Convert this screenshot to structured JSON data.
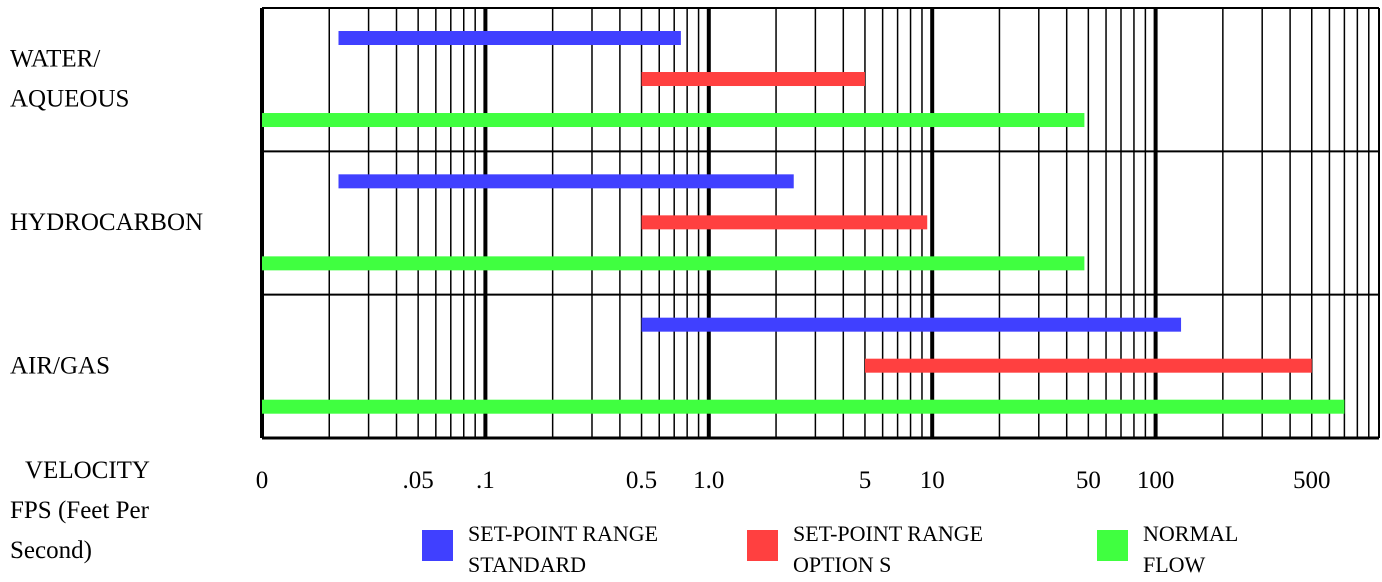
{
  "chart_data": {
    "type": "bar",
    "orientation": "horizontal-range",
    "x_scale": "log",
    "xlim": [
      0.01,
      1000
    ],
    "categories": [
      {
        "label_lines": [
          "WATER/",
          "AQUEOUS"
        ]
      },
      {
        "label_lines": [
          "HYDROCARBON"
        ]
      },
      {
        "label_lines": [
          "AIR/GAS"
        ]
      }
    ],
    "series": [
      {
        "legend_lines": [
          "SET-POINT RANGE",
          "STANDARD"
        ],
        "color": "#4040ff",
        "ranges": [
          [
            0.022,
            0.75
          ],
          [
            0.022,
            2.4
          ],
          [
            0.5,
            130
          ]
        ]
      },
      {
        "legend_lines": [
          "SET-POINT RANGE",
          "OPTION S"
        ],
        "color": "#ff4040",
        "ranges": [
          [
            0.5,
            5
          ],
          [
            0.5,
            9.5
          ],
          [
            5,
            500
          ]
        ]
      },
      {
        "legend_lines": [
          "NORMAL",
          "FLOW"
        ],
        "color": "#40ff40",
        "ranges": [
          [
            0.01,
            48
          ],
          [
            0.01,
            48
          ],
          [
            0.01,
            700
          ]
        ]
      }
    ],
    "tick_labels": [
      {
        "value": 0.01,
        "label": "0"
      },
      {
        "value": 0.05,
        "label": ".05"
      },
      {
        "value": 0.1,
        "label": ".1"
      },
      {
        "value": 0.5,
        "label": "0.5"
      },
      {
        "value": 1,
        "label": "1.0"
      },
      {
        "value": 5,
        "label": "5"
      },
      {
        "value": 10,
        "label": "10"
      },
      {
        "value": 50,
        "label": "50"
      },
      {
        "value": 100,
        "label": "100"
      },
      {
        "value": 500,
        "label": "500"
      }
    ],
    "xlabel_lines": [
      "VELOCITY",
      "FPS (Feet Per",
      "Second)"
    ],
    "grid": true,
    "legend_position": "bottom"
  }
}
